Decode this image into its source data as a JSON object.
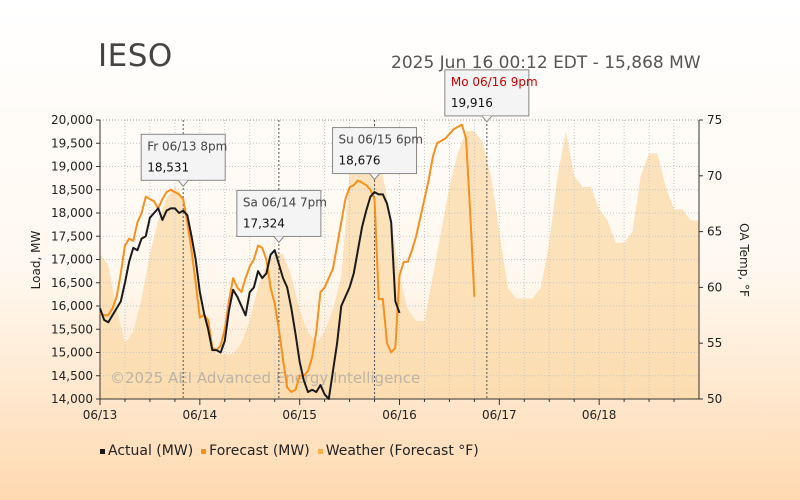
{
  "header": {
    "title": "IESO",
    "subtitle": "2025 Jun 16 00:12 EDT - 15,868 MW"
  },
  "watermark": "©2025 AEI Advanced Energy Intelligence",
  "colors": {
    "actual": "#1a1a1a",
    "forecast": "#f7901e",
    "weather": "#fbd9a8",
    "peak_label": "#cc0000",
    "grid": "#d0d0d0"
  },
  "legend": [
    {
      "label": "Actual (MW)",
      "color": "#1a1a1a"
    },
    {
      "label": "Forecast (MW)",
      "color": "#f7901e"
    },
    {
      "label": "Weather (Forecast °F)",
      "color": "#f7b24a"
    }
  ],
  "chart_data": {
    "type": "line",
    "ylabel": "Load, MW",
    "y2label": "OA Temp, °F",
    "ylim": [
      14000,
      20000
    ],
    "y2lim": [
      50,
      75
    ],
    "xlim": [
      "06/13 00:00",
      "06/19 00:00"
    ],
    "x_ticks": [
      "06/13",
      "06/14",
      "06/15",
      "06/16",
      "06/17",
      "06/18"
    ],
    "y_ticks": [
      "14,000",
      "14,500",
      "15,000",
      "15,500",
      "16,000",
      "16,500",
      "17,000",
      "17,500",
      "18,000",
      "18,500",
      "19,000",
      "19,500",
      "20,000"
    ],
    "y2_ticks": [
      "50",
      "55",
      "60",
      "65",
      "70",
      "75"
    ],
    "grid": true,
    "series": [
      {
        "name": "Actual (MW)",
        "x_hours": [
          0,
          1,
          2,
          3,
          4,
          5,
          6,
          7,
          8,
          9,
          10,
          11,
          12,
          13,
          14,
          15,
          16,
          17,
          18,
          19,
          20,
          21,
          22,
          23,
          24,
          25,
          26,
          27,
          28,
          29,
          30,
          31,
          32,
          33,
          34,
          35,
          36,
          37,
          38,
          39,
          40,
          41,
          42,
          43,
          44,
          45,
          46,
          47,
          48,
          49,
          50,
          51,
          52,
          53,
          54,
          55,
          56,
          57,
          58,
          59,
          60,
          61,
          62,
          63,
          64,
          65,
          66,
          67,
          68,
          69,
          70,
          71,
          72,
          73,
          74,
          75,
          76
        ],
        "values": [
          15950,
          15700,
          15650,
          15800,
          15950,
          16100,
          16500,
          16950,
          17250,
          17200,
          17450,
          17500,
          17900,
          18000,
          18100,
          17850,
          18050,
          18100,
          18100,
          18000,
          18050,
          17950,
          17500,
          17000,
          16300,
          15850,
          15500,
          15050,
          15050,
          15000,
          15250,
          15900,
          16350,
          16200,
          16000,
          15800,
          16300,
          16400,
          16750,
          16600,
          16700,
          17100,
          17200,
          16900,
          16600,
          16400,
          15950,
          15400,
          14800,
          14400,
          14150,
          14200,
          14150,
          14300,
          14100,
          14000,
          14600,
          15200,
          16000,
          16200,
          16400,
          16700,
          17200,
          17700,
          18050,
          18350,
          18450,
          18400,
          18400,
          18200,
          17800,
          16100,
          15850,
          null,
          null,
          null,
          null
        ]
      },
      {
        "name": "Forecast (MW)",
        "x_hours": [
          0,
          1,
          2,
          3,
          4,
          5,
          6,
          7,
          8,
          9,
          10,
          11,
          12,
          13,
          14,
          15,
          16,
          17,
          18,
          19,
          20,
          21,
          22,
          23,
          24,
          25,
          26,
          27,
          28,
          29,
          30,
          31,
          32,
          33,
          34,
          35,
          36,
          37,
          38,
          39,
          40,
          41,
          42,
          43,
          44,
          45,
          46,
          47,
          48,
          49,
          50,
          51,
          52,
          53,
          54,
          55,
          56,
          57,
          58,
          59,
          60,
          61,
          62,
          63,
          64,
          65,
          66,
          67,
          68,
          69,
          70,
          71,
          72,
          73,
          74,
          75,
          76,
          77,
          78,
          79,
          80,
          81,
          82,
          83,
          84,
          85,
          86,
          87,
          88,
          89,
          90,
          91,
          92,
          93,
          94,
          95,
          96,
          97,
          98,
          99
        ],
        "values": [
          15850,
          15800,
          15800,
          15950,
          16200,
          16700,
          17300,
          17450,
          17400,
          17800,
          18000,
          18350,
          18300,
          18250,
          18100,
          18300,
          18450,
          18500,
          18450,
          18400,
          18300,
          17800,
          17200,
          16500,
          15750,
          15800,
          15700,
          15100,
          15050,
          15150,
          15500,
          16100,
          16600,
          16400,
          16300,
          16600,
          16850,
          17000,
          17300,
          17250,
          17000,
          16400,
          16050,
          15500,
          14850,
          14250,
          14150,
          14200,
          14500,
          14500,
          14600,
          14900,
          15450,
          16300,
          16400,
          16600,
          16800,
          17300,
          17800,
          18300,
          18550,
          18600,
          18700,
          18650,
          18600,
          18500,
          18300,
          16150,
          16150,
          15200,
          15000,
          15100,
          16650,
          16950,
          16950,
          17200,
          17500,
          17900,
          18300,
          18700,
          19200,
          19500,
          19550,
          19600,
          19700,
          19800,
          19850,
          19900,
          19600,
          18000,
          16200,
          null,
          null,
          null,
          null,
          null,
          null,
          null,
          null,
          null
        ]
      },
      {
        "name": "Weather (Forecast °F)",
        "x_hours": [
          0,
          2,
          4,
          6,
          8,
          10,
          12,
          14,
          16,
          18,
          20,
          22,
          24,
          26,
          28,
          30,
          32,
          34,
          36,
          38,
          40,
          42,
          44,
          46,
          48,
          50,
          52,
          54,
          56,
          58,
          60,
          62,
          64,
          66,
          68,
          70,
          72,
          74,
          76,
          78,
          80,
          82,
          84,
          86,
          88,
          90,
          92,
          94,
          96,
          98,
          100,
          102,
          104,
          106,
          108,
          110,
          112,
          114,
          116,
          118,
          120,
          122,
          124,
          126,
          128,
          130,
          132,
          134,
          136,
          138,
          140,
          142,
          144
        ],
        "values": [
          63,
          62,
          58,
          55,
          56,
          59,
          63,
          66,
          68,
          69,
          68,
          64,
          59,
          56,
          54,
          54,
          54,
          55,
          57,
          60,
          62,
          63,
          63,
          61,
          58,
          56,
          55,
          56,
          58,
          61,
          70,
          72,
          73,
          72,
          70,
          66,
          61,
          58,
          57,
          57,
          61,
          65,
          69,
          72,
          74,
          74,
          73,
          70,
          65,
          60,
          59,
          59,
          59,
          60,
          64,
          70,
          74,
          70,
          69,
          69,
          67,
          66,
          64,
          64,
          65,
          70,
          72,
          72,
          69,
          67,
          67,
          66,
          66
        ]
      }
    ],
    "annotations": [
      {
        "date": "Fr 06/13 8pm",
        "value": "18,531",
        "x_hour": 20
      },
      {
        "date": "Sa 06/14 7pm",
        "value": "17,324",
        "x_hour": 43
      },
      {
        "date": "Su 06/15 6pm",
        "value": "18,676",
        "x_hour": 66
      },
      {
        "date": "Mo 06/16 9pm",
        "value": "19,916",
        "x_hour": 93,
        "highlight": true
      }
    ]
  }
}
